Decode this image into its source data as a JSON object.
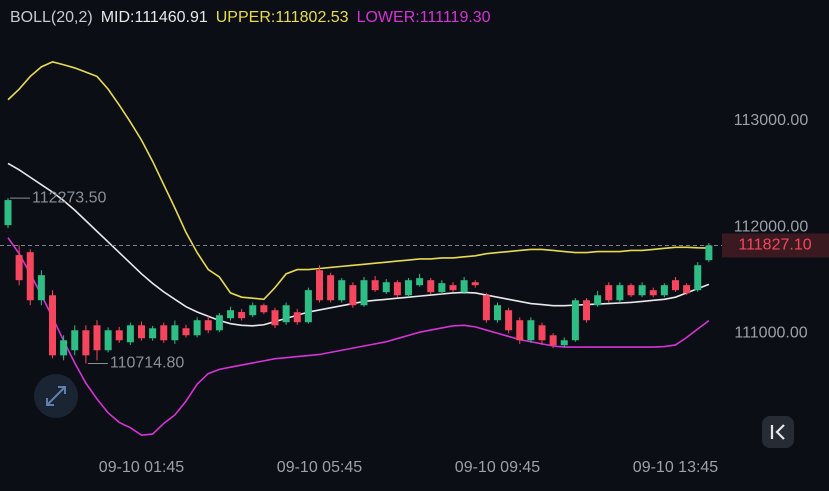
{
  "chart_data": {
    "type": "candlestick",
    "indicator": "BOLL(20,2)",
    "categories": [
      null,
      null,
      null,
      null,
      null,
      null,
      null,
      null,
      null,
      null,
      null,
      null,
      "09-10 01:45",
      null,
      null,
      null,
      null,
      null,
      null,
      null,
      null,
      null,
      null,
      null,
      null,
      null,
      null,
      null,
      "09-10 05:45",
      null,
      null,
      null,
      null,
      null,
      null,
      null,
      null,
      null,
      null,
      null,
      null,
      null,
      null,
      null,
      "09-10 09:45",
      null,
      null,
      null,
      null,
      null,
      null,
      null,
      null,
      null,
      null,
      null,
      null,
      null,
      null,
      null,
      "09-10 13:45",
      null,
      null,
      null
    ],
    "open": [
      112019,
      111736,
      111764,
      111311,
      111358,
      110792,
      110840,
      111028,
      111075,
      110840,
      111028,
      110915,
      111075,
      110953,
      111075,
      110934,
      111047,
      110981,
      111123,
      111028,
      111142,
      111200,
      111170,
      111264,
      111217,
      111104,
      111198,
      111104,
      111594,
      111547,
      111311,
      111453,
      111264,
      111500,
      111387,
      111481,
      111358,
      111453,
      111500,
      111387,
      111453,
      111387,
      111481,
      111358,
      111123,
      111217,
      111123,
      110934,
      111075,
      110981,
      110887,
      110934,
      111311,
      111264,
      111453,
      111311,
      111453,
      111358,
      111406,
      111358,
      111500,
      111453,
      111406,
      111689
    ],
    "high": [
      112273.5,
      111830,
      111792,
      111594,
      111406,
      110981,
      111075,
      111075,
      111123,
      111055,
      111060,
      111100,
      111110,
      111070,
      111100,
      111120,
      111080,
      111150,
      111160,
      111190,
      111250,
      111230,
      111290,
      111280,
      111240,
      111290,
      111230,
      111430,
      111640,
      111570,
      111520,
      111480,
      111530,
      111540,
      111510,
      111500,
      111520,
      111560,
      111520,
      111500,
      111480,
      111530,
      111500,
      111380,
      111290,
      111240,
      111150,
      111150,
      111100,
      111000,
      110960,
      111330,
      111330,
      111400,
      111480,
      111480,
      111470,
      111480,
      111430,
      111470,
      111530,
      111470,
      111670,
      111850
    ],
    "low": [
      111991,
      111453,
      111264,
      111264,
      110764,
      110745,
      110792,
      110714.8,
      110745,
      110820,
      110910,
      110890,
      110930,
      110930,
      110910,
      110900,
      110960,
      110960,
      111000,
      111010,
      111120,
      111120,
      111150,
      111180,
      111050,
      111080,
      111080,
      111090,
      111290,
      111290,
      111290,
      111240,
      111250,
      111390,
      111370,
      111340,
      111340,
      111440,
      111370,
      111370,
      111390,
      111370,
      111430,
      111100,
      111100,
      111000,
      110900,
      110910,
      110890,
      110860,
      110870,
      110920,
      111100,
      111250,
      111290,
      111290,
      111340,
      111340,
      111340,
      111340,
      111390,
      111360,
      111390,
      111670
    ],
    "close": [
      112255,
      111500,
      111311,
      111547,
      110792,
      110934,
      111028,
      110792,
      110840,
      111028,
      110934,
      111075,
      110953,
      111047,
      110934,
      111075,
      110981,
      111123,
      111028,
      111170,
      111217,
      111142,
      111264,
      111198,
      111075,
      111264,
      111104,
      111406,
      111311,
      111311,
      111500,
      111264,
      111500,
      111406,
      111481,
      111358,
      111500,
      111519,
      111387,
      111472,
      111406,
      111500,
      111453,
      111123,
      111264,
      111028,
      110934,
      111123,
      110934,
      110887,
      110934,
      111311,
      111123,
      111358,
      111311,
      111453,
      111358,
      111453,
      111358,
      111453,
      111406,
      111377,
      111641,
      111827.1
    ],
    "up_color": "#2ebd85",
    "down_color": "#f6465d",
    "series": [
      {
        "name": "MID:111460.91",
        "color": "#e9e9ec",
        "values": [
          112600,
          112540,
          112470,
          112400,
          112330,
          112250,
          112160,
          112060,
          111960,
          111860,
          111760,
          111660,
          111560,
          111470,
          111390,
          111320,
          111250,
          111200,
          111160,
          111120,
          111090,
          111075,
          111070,
          111080,
          111110,
          111140,
          111170,
          111200,
          111220,
          111240,
          111260,
          111280,
          111300,
          111310,
          111320,
          111330,
          111340,
          111350,
          111360,
          111370,
          111380,
          111385,
          111380,
          111360,
          111340,
          111320,
          111300,
          111280,
          111270,
          111260,
          111260,
          111265,
          111270,
          111275,
          111280,
          111285,
          111290,
          111300,
          111310,
          111320,
          111340,
          111380,
          111420,
          111460.91
        ]
      },
      {
        "name": "UPPER:111802.53",
        "color": "#e8dc4c",
        "values": [
          113200,
          113300,
          113420,
          113510,
          113557,
          113530,
          113500,
          113460,
          113420,
          113300,
          113150,
          112990,
          112820,
          112620,
          112400,
          112180,
          111950,
          111760,
          111600,
          111530,
          111380,
          111340,
          111330,
          111320,
          111430,
          111560,
          111600,
          111600,
          111610,
          111620,
          111630,
          111640,
          111650,
          111660,
          111670,
          111680,
          111690,
          111700,
          111700,
          111710,
          111710,
          111720,
          111730,
          111750,
          111760,
          111770,
          111780,
          111790,
          111790,
          111780,
          111770,
          111760,
          111760,
          111770,
          111770,
          111770,
          111780,
          111780,
          111790,
          111800,
          111810,
          111810,
          111805,
          111802.53
        ]
      },
      {
        "name": "LOWER:111119.30",
        "color": "#d633d6",
        "values": [
          111900,
          111750,
          111560,
          111360,
          111150,
          110930,
          110720,
          110530,
          110380,
          110250,
          110160,
          110110,
          110040,
          110050,
          110150,
          110230,
          110360,
          110520,
          110620,
          110660,
          110680,
          110700,
          110720,
          110740,
          110760,
          110770,
          110780,
          110790,
          110800,
          110820,
          110840,
          110860,
          110880,
          110900,
          110920,
          110950,
          110980,
          111010,
          111030,
          111050,
          111070,
          111075,
          111060,
          111030,
          111000,
          110970,
          110940,
          110920,
          110900,
          110880,
          110870,
          110870,
          110870,
          110870,
          110870,
          110870,
          110870,
          110870,
          110870,
          110875,
          110890,
          110960,
          111040,
          111119.3
        ]
      }
    ],
    "ylim": [
      109900,
      114140
    ],
    "yticks": [
      {
        "value": 111000,
        "label": "111000.00"
      },
      {
        "value": 112000,
        "label": "112000.00"
      },
      {
        "value": 113000,
        "label": "113000.00"
      }
    ],
    "high_marker": {
      "value": 112273.5,
      "label": "112273.50"
    },
    "low_marker": {
      "value": 110714.8,
      "label": "110714.80"
    },
    "last_price": {
      "value": 111827.1,
      "label": "111827.10"
    }
  }
}
